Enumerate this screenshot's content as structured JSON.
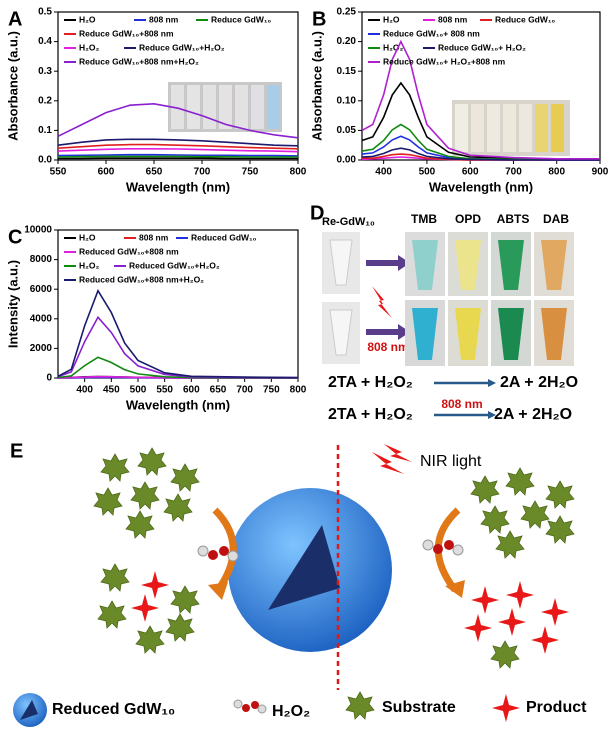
{
  "chart_data": [
    {
      "type": "line",
      "label": "A",
      "xlabel": "Wavelength (nm)",
      "ylabel": "Absorbance (a.u.)",
      "x": [
        550,
        575,
        600,
        625,
        650,
        675,
        700,
        725,
        750,
        775,
        800
      ],
      "xlim": [
        550,
        800
      ],
      "xticks": [
        550,
        600,
        650,
        700,
        750,
        800
      ],
      "ylim": [
        0,
        0.5
      ],
      "yticks": [
        {
          "value": 0,
          "label": "0.0"
        },
        0.1,
        0.2,
        0.3,
        0.4,
        0.5
      ],
      "series": [
        {
          "name": "H₂O",
          "color": "#000000",
          "values": [
            0.005,
            0.005,
            0.006,
            0.006,
            0.006,
            0.006,
            0.006,
            0.005,
            0.005,
            0.005,
            0.005
          ]
        },
        {
          "name": "808 nm",
          "color": "#2030e0",
          "values": [
            0.015,
            0.016,
            0.017,
            0.018,
            0.018,
            0.017,
            0.016,
            0.016,
            0.015,
            0.015,
            0.014
          ]
        },
        {
          "name": "Reduce GdW₁₀",
          "color": "#108a10",
          "values": [
            0.01,
            0.011,
            0.012,
            0.012,
            0.012,
            0.012,
            0.011,
            0.011,
            0.01,
            0.01,
            0.01
          ]
        },
        {
          "name": "Reduce GdW₁₀+808 nm",
          "color": "#e02020",
          "values": [
            0.04,
            0.045,
            0.05,
            0.052,
            0.052,
            0.05,
            0.048,
            0.045,
            0.042,
            0.04,
            0.038
          ]
        },
        {
          "name": "H₂O₂",
          "color": "#e020e0",
          "values": [
            0.03,
            0.033,
            0.036,
            0.038,
            0.038,
            0.037,
            0.035,
            0.033,
            0.031,
            0.03,
            0.028
          ]
        },
        {
          "name": "Reduce GdW₁₀+H₂O₂",
          "color": "#1a1a6e",
          "values": [
            0.05,
            0.06,
            0.068,
            0.07,
            0.07,
            0.068,
            0.065,
            0.06,
            0.055,
            0.05,
            0.048
          ]
        },
        {
          "name": "Reduce GdW₁₀+808 nm+H₂O₂",
          "color": "#8a20d0",
          "values": [
            0.08,
            0.12,
            0.16,
            0.185,
            0.19,
            0.175,
            0.15,
            0.12,
            0.1,
            0.085,
            0.075
          ]
        }
      ]
    },
    {
      "type": "line",
      "label": "B",
      "xlabel": "Wavelength (nm)",
      "ylabel": "Absorbance (a.u.)",
      "x": [
        350,
        375,
        400,
        420,
        440,
        460,
        480,
        500,
        550,
        600,
        700,
        800,
        900
      ],
      "xlim": [
        350,
        900
      ],
      "xticks": [
        400,
        500,
        600,
        700,
        800,
        900
      ],
      "ylim": [
        0,
        0.25
      ],
      "yticks": [
        {
          "value": 0,
          "label": "0.00"
        },
        {
          "value": 0.05,
          "label": "0.05"
        },
        {
          "value": 0.1,
          "label": "0.10"
        },
        {
          "value": 0.15,
          "label": "0.15"
        },
        {
          "value": 0.2,
          "label": "0.20"
        },
        {
          "value": 0.25,
          "label": "0.25"
        }
      ],
      "series": [
        {
          "name": "H₂O",
          "color": "#000000",
          "values": [
            0.033,
            0.039,
            0.072,
            0.11,
            0.13,
            0.11,
            0.072,
            0.039,
            0.013,
            0.005,
            0.003,
            0.001,
            0.001
          ]
        },
        {
          "name": "808 nm",
          "color": "#e020e0",
          "values": [
            0.001,
            0.002,
            0.003,
            0.004,
            0.005,
            0.004,
            0.003,
            0.002,
            0.001,
            0,
            0,
            0,
            0
          ]
        },
        {
          "name": "Reduce GdW₁₀",
          "color": "#e02020",
          "values": [
            0.003,
            0.003,
            0.006,
            0.009,
            0.01,
            0.009,
            0.006,
            0.003,
            0.001,
            0,
            0,
            0,
            0
          ]
        },
        {
          "name": "Reduce GdW₁₀+ 808 nm",
          "color": "#2030e0",
          "values": [
            0.01,
            0.012,
            0.022,
            0.034,
            0.04,
            0.034,
            0.022,
            0.012,
            0.004,
            0.002,
            0.001,
            0,
            0
          ]
        },
        {
          "name": "H₂O₂",
          "color": "#108a10",
          "values": [
            0.015,
            0.018,
            0.033,
            0.051,
            0.06,
            0.051,
            0.033,
            0.018,
            0.006,
            0.002,
            0.001,
            0.001,
            0.001
          ]
        },
        {
          "name": "Reduce GdW₁₀+ H₂O₂",
          "color": "#1a1a6e",
          "values": [
            0.005,
            0.006,
            0.011,
            0.017,
            0.02,
            0.017,
            0.011,
            0.006,
            0.002,
            0.001,
            0,
            0,
            0
          ]
        },
        {
          "name": "Reduce GdW₁₀+ H₂O₂+808 nm",
          "color": "#b020d0",
          "values": [
            0.05,
            0.06,
            0.11,
            0.17,
            0.2,
            0.17,
            0.11,
            0.06,
            0.02,
            0.008,
            0.004,
            0.002,
            0.002
          ]
        }
      ]
    },
    {
      "type": "line",
      "label": "C",
      "xlabel": "Wavelength (nm)",
      "ylabel": "Intensity (a.u.)",
      "x": [
        350,
        375,
        400,
        425,
        450,
        475,
        500,
        550,
        600,
        700,
        800
      ],
      "xlim": [
        350,
        800
      ],
      "xticks": [
        400,
        450,
        500,
        550,
        600,
        650,
        700,
        750,
        800
      ],
      "ylim": [
        0,
        10000
      ],
      "yticks": [
        0,
        2000,
        4000,
        6000,
        8000,
        10000
      ],
      "series": [
        {
          "name": "H₂O",
          "color": "#000000",
          "values": [
            20,
            40,
            80,
            100,
            90,
            70,
            50,
            30,
            20,
            10,
            10
          ]
        },
        {
          "name": "808 nm",
          "color": "#e02020",
          "values": [
            10,
            20,
            50,
            80,
            70,
            50,
            30,
            20,
            10,
            5,
            5
          ]
        },
        {
          "name": "Reduced GdW₁₀",
          "color": "#2030e0",
          "values": [
            5,
            10,
            30,
            50,
            40,
            30,
            20,
            10,
            5,
            5,
            5
          ]
        },
        {
          "name": "Reduced GdW₁₀+808 nm",
          "color": "#e020e0",
          "values": [
            15,
            30,
            60,
            90,
            80,
            60,
            40,
            20,
            10,
            10,
            5
          ]
        },
        {
          "name": "H₂O₂",
          "color": "#108a10",
          "values": [
            28,
            140,
            840,
            1400,
            1050,
            560,
            280,
            84,
            28,
            14,
            7
          ]
        },
        {
          "name": "Reduced GdW₁₀+H₂O₂",
          "color": "#8a20d0",
          "values": [
            82,
            410,
            2460,
            4100,
            3075,
            1640,
            820,
            246,
            82,
            41,
            21
          ]
        },
        {
          "name": "Reduced GdW₁₀+808 nm+H₂O₂",
          "color": "#1a1a6e",
          "values": [
            118,
            590,
            3540,
            5900,
            4425,
            2360,
            1180,
            354,
            118,
            59,
            30
          ]
        }
      ]
    }
  ],
  "panel_d": {
    "label": "D",
    "sample": "Re-GdW₁₀",
    "substrates": [
      "TMB",
      "OPD",
      "ABTS",
      "DAB"
    ],
    "light": "808 nm",
    "equation_1": {
      "left": "2TA + H₂O₂",
      "right": "2A + 2H₂O"
    },
    "equation_2": {
      "left": "2TA + H₂O₂",
      "condition": "808 nm",
      "right": "2A + 2H₂O"
    }
  },
  "panel_e": {
    "label": "E",
    "light": "NIR light",
    "legend": [
      "Reduced GdW₁₀",
      "H₂O₂",
      "Substrate",
      "Product"
    ]
  }
}
